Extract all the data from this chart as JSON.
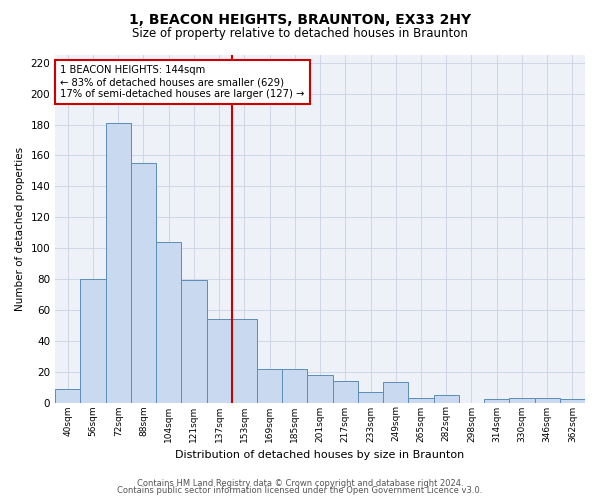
{
  "title": "1, BEACON HEIGHTS, BRAUNTON, EX33 2HY",
  "subtitle": "Size of property relative to detached houses in Braunton",
  "xlabel": "Distribution of detached houses by size in Braunton",
  "ylabel": "Number of detached properties",
  "categories": [
    "40sqm",
    "56sqm",
    "72sqm",
    "88sqm",
    "104sqm",
    "121sqm",
    "137sqm",
    "153sqm",
    "169sqm",
    "185sqm",
    "201sqm",
    "217sqm",
    "233sqm",
    "249sqm",
    "265sqm",
    "282sqm",
    "298sqm",
    "314sqm",
    "330sqm",
    "346sqm",
    "362sqm"
  ],
  "values": [
    9,
    80,
    181,
    155,
    104,
    79,
    54,
    54,
    22,
    22,
    18,
    14,
    7,
    13,
    3,
    5,
    0,
    2,
    3,
    3,
    2
  ],
  "bar_color": "#c9d9f0",
  "bar_edge_color": "#5b8db8",
  "reference_line_index": 7,
  "reference_line_label": "1 BEACON HEIGHTS: 144sqm",
  "annotation_line1": "← 83% of detached houses are smaller (629)",
  "annotation_line2": "17% of semi-detached houses are larger (127) →",
  "annotation_box_color": "#ffffff",
  "annotation_box_edge": "#cc0000",
  "annotation_text_color": "#000000",
  "vline_color": "#cc0000",
  "ylim": [
    0,
    225
  ],
  "yticks": [
    0,
    20,
    40,
    60,
    80,
    100,
    120,
    140,
    160,
    180,
    200,
    220
  ],
  "grid_color": "#d0d8e8",
  "background_color": "#eef2f8",
  "footer_line1": "Contains HM Land Registry data © Crown copyright and database right 2024.",
  "footer_line2": "Contains public sector information licensed under the Open Government Licence v3.0."
}
